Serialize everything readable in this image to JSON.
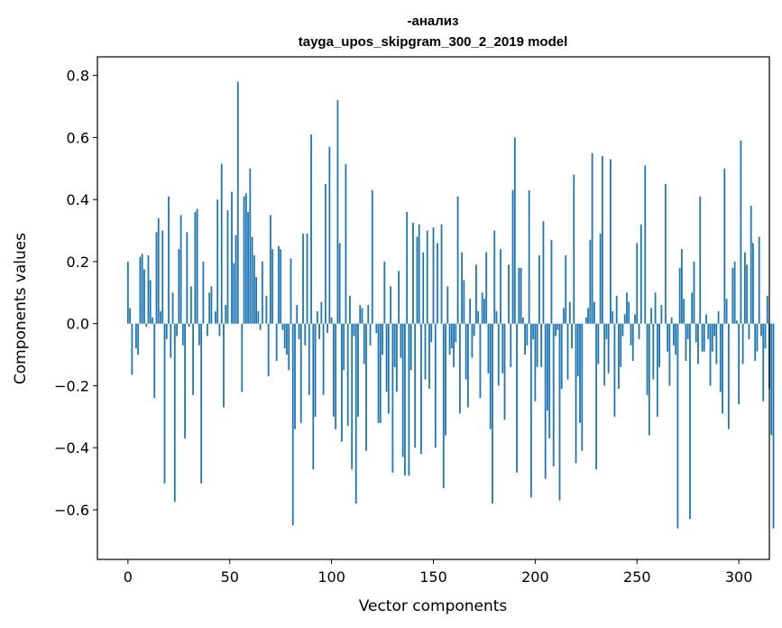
{
  "chart_data": {
    "type": "bar",
    "title_line1": "-анализ",
    "title_line2": "tayga_upos_skipgram_300_2_2019 model",
    "xlabel": "Vector components",
    "ylabel": "Components values",
    "xlim": [
      -15,
      315
    ],
    "ylim": [
      -0.76,
      0.86
    ],
    "xticks": [
      0,
      50,
      100,
      150,
      200,
      250,
      300
    ],
    "xtick_labels": [
      "0",
      "50",
      "100",
      "150",
      "200",
      "250",
      "300"
    ],
    "yticks": [
      0.8,
      0.6,
      0.4,
      0.2,
      0.0,
      -0.2,
      -0.4,
      -0.6
    ],
    "ytick_labels": [
      "0.8",
      "0.6",
      "0.4",
      "0.2",
      "0.0",
      "−0.2",
      "−0.4",
      "−0.6"
    ],
    "bar_color": "#1f77b4",
    "values": [
      0.2,
      0.05,
      -0.165,
      0.0,
      -0.08,
      -0.1,
      0.215,
      0.225,
      0.175,
      -0.01,
      0.22,
      0.14,
      0.02,
      -0.24,
      0.295,
      0.34,
      0.04,
      0.3,
      -0.515,
      -0.05,
      0.41,
      -0.11,
      0.1,
      -0.575,
      -0.04,
      0.24,
      0.35,
      -0.07,
      -0.37,
      0.295,
      -0.01,
      0.12,
      -0.23,
      0.36,
      0.37,
      -0.07,
      -0.515,
      0.2,
      0.0,
      -0.04,
      0.1,
      0.12,
      0.0,
      0.04,
      0.4,
      -0.04,
      0.515,
      -0.27,
      0.06,
      0.365,
      0.0,
      0.425,
      0.195,
      0.285,
      0.78,
      0.0,
      -0.22,
      0.41,
      0.42,
      0.36,
      0.5,
      0.28,
      0.22,
      0.15,
      0.04,
      -0.02,
      0.2,
      0.0,
      0.09,
      -0.17,
      0.35,
      0.24,
      0.0,
      -0.12,
      0.25,
      0.24,
      -0.02,
      -0.08,
      -0.1,
      -0.15,
      0.21,
      -0.65,
      -0.34,
      0.06,
      -0.05,
      -0.32,
      0.29,
      -0.07,
      0.29,
      -0.23,
      0.61,
      -0.47,
      -0.3,
      0.04,
      -0.05,
      0.07,
      -0.23,
      0.45,
      -0.03,
      0.57,
      0.02,
      -0.3,
      -0.34,
      0.72,
      0.26,
      -0.38,
      -0.15,
      0.515,
      -0.33,
      0.09,
      -0.47,
      -0.04,
      -0.58,
      -0.3,
      0.06,
      0.05,
      -0.13,
      -0.41,
      0.06,
      -0.07,
      0.43,
      0.0,
      -0.03,
      -0.32,
      -0.32,
      -0.1,
      0.2,
      -0.22,
      -0.29,
      0.12,
      -0.48,
      -0.14,
      -0.22,
      0.17,
      -0.11,
      -0.43,
      -0.49,
      0.36,
      -0.49,
      -0.15,
      0.325,
      -0.4,
      0.28,
      0.32,
      -0.42,
      0.23,
      -0.18,
      0.3,
      -0.21,
      -0.06,
      0.31,
      -0.4,
      0.26,
      0.0,
      0.32,
      -0.53,
      -0.36,
      0.12,
      -0.1,
      -0.08,
      -0.14,
      -0.06,
      0.41,
      -0.29,
      0.23,
      0.14,
      -0.18,
      -0.27,
      0.08,
      -0.11,
      -0.04,
      0.19,
      0.04,
      -0.24,
      0.1,
      0.08,
      0.23,
      -0.16,
      -0.34,
      -0.58,
      0.3,
      0.04,
      -0.2,
      0.24,
      -0.16,
      -0.31,
      0.0,
      0.19,
      -0.14,
      0.43,
      0.6,
      -0.48,
      0.18,
      0.18,
      0.02,
      -0.1,
      -0.07,
      0.43,
      -0.56,
      -0.05,
      -0.25,
      -0.14,
      0.22,
      -0.14,
      0.33,
      -0.5,
      -0.28,
      -0.37,
      0.27,
      -0.46,
      -0.04,
      -0.02,
      -0.57,
      -0.21,
      0.05,
      0.22,
      -0.18,
      0.07,
      -0.08,
      0.48,
      -0.45,
      -0.17,
      -0.32,
      -0.41,
      0.0,
      0.02,
      0.05,
      0.27,
      0.55,
      0.07,
      -0.47,
      -0.13,
      0.29,
      0.54,
      -0.2,
      -0.05,
      -0.16,
      0.53,
      0.04,
      -0.3,
      0.09,
      -0.21,
      -0.14,
      -0.04,
      0.03,
      0.1,
      0.07,
      -0.07,
      -0.12,
      0.03,
      0.26,
      -0.05,
      0.32,
      0.0,
      0.51,
      -0.23,
      -0.36,
      0.05,
      -0.18,
      0.1,
      -0.3,
      -0.14,
      0.06,
      0.0,
      0.45,
      -0.09,
      -0.2,
      0.02,
      -0.07,
      -0.1,
      -0.66,
      0.18,
      0.24,
      0.08,
      -0.12,
      -0.05,
      -0.63,
      0.1,
      0.2,
      -0.06,
      -0.13,
      0.41,
      -0.09,
      -0.09,
      0.03,
      -0.05,
      -0.2,
      -0.09,
      -0.04,
      -0.13,
      0.04,
      -0.22,
      -0.29,
      0.5,
      0.08,
      -0.34,
      0.0,
      0.18,
      0.2,
      0.01,
      -0.26,
      0.59,
      -0.13,
      0.23,
      0.19,
      -0.05,
      0.38,
      0.26,
      -0.12,
      -0.09,
      0.28,
      -0.04,
      -0.25,
      -0.08,
      0.09,
      -0.21,
      -0.36,
      -0.66,
      0.0
    ]
  }
}
